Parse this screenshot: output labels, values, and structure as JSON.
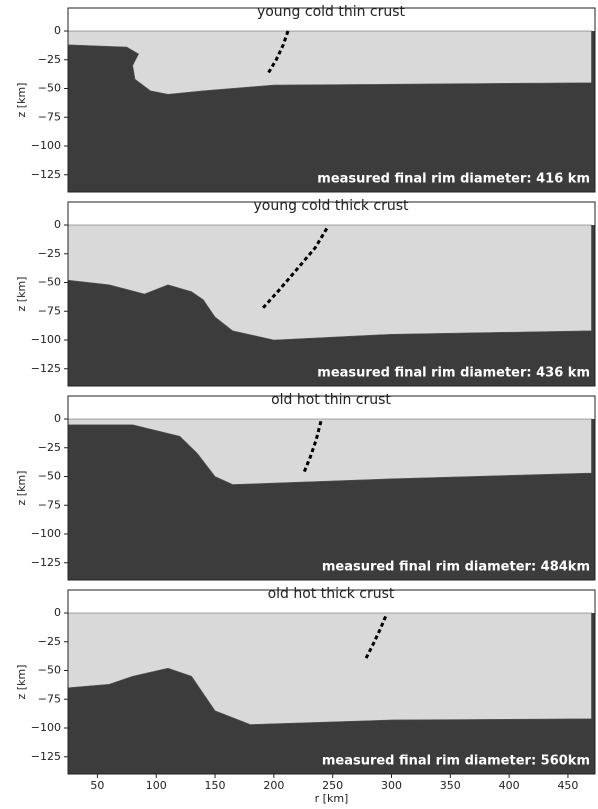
{
  "chart_data": [
    {
      "type": "area",
      "title": "young cold thin crust",
      "annotation": "measured final rim diameter: 416 km",
      "ylabel": "z [km]",
      "background": "#3c3c3c",
      "color": "#d9d9d9",
      "xlim": [
        25,
        473
      ],
      "ylim": [
        -140,
        20
      ],
      "yticks": [
        0,
        {
          "value": -25,
          "label": "−25"
        },
        {
          "value": -50,
          "label": "−50"
        },
        {
          "value": -75,
          "label": "−75"
        },
        {
          "value": -100,
          "label": "−100"
        },
        {
          "value": -125,
          "label": "−125"
        }
      ],
      "area": {
        "x": [
          25,
          470,
          470,
          200,
          140,
          110,
          95,
          82,
          80,
          85,
          75,
          25
        ],
        "y": [
          0,
          0,
          -45,
          -47,
          -52,
          -55,
          -52,
          -42,
          -30,
          -20,
          -14,
          -12
        ]
      },
      "rim": {
        "x": [
          212,
          208,
          202,
          195
        ],
        "y": [
          0,
          -12,
          -25,
          -37
        ]
      }
    },
    {
      "type": "area",
      "title": "young cold thick crust",
      "annotation": "measured final rim diameter: 436 km",
      "ylabel": "z [km]",
      "background": "#3c3c3c",
      "color": "#d9d9d9",
      "xlim": [
        25,
        473
      ],
      "ylim": [
        -140,
        20
      ],
      "yticks": [
        0,
        {
          "value": -25,
          "label": "−25"
        },
        {
          "value": -50,
          "label": "−50"
        },
        {
          "value": -75,
          "label": "−75"
        },
        {
          "value": -100,
          "label": "−100"
        },
        {
          "value": -125,
          "label": "−125"
        }
      ],
      "area": {
        "x": [
          25,
          470,
          470,
          300,
          200,
          165,
          150,
          140,
          130,
          110,
          90,
          60,
          25
        ],
        "y": [
          0,
          0,
          -92,
          -95,
          -100,
          -92,
          -80,
          -65,
          -58,
          -52,
          -60,
          -52,
          -48
        ]
      },
      "rim": {
        "x": [
          245,
          235,
          220,
          205,
          190
        ],
        "y": [
          -3,
          -20,
          -38,
          -56,
          -73
        ]
      }
    },
    {
      "type": "area",
      "title": "old hot thin crust",
      "annotation": "measured final rim diameter: 484km",
      "ylabel": "z [km]",
      "background": "#3c3c3c",
      "color": "#d9d9d9",
      "xlim": [
        25,
        473
      ],
      "ylim": [
        -140,
        20
      ],
      "yticks": [
        0,
        {
          "value": -25,
          "label": "−25"
        },
        {
          "value": -50,
          "label": "−50"
        },
        {
          "value": -75,
          "label": "−75"
        },
        {
          "value": -100,
          "label": "−100"
        },
        {
          "value": -125,
          "label": "−125"
        }
      ],
      "area": {
        "x": [
          25,
          470,
          470,
          300,
          165,
          150,
          135,
          120,
          80,
          25
        ],
        "y": [
          0,
          0,
          -47,
          -52,
          -57,
          -50,
          -30,
          -15,
          -5,
          -5
        ]
      },
      "rim": {
        "x": [
          240,
          236,
          231,
          225
        ],
        "y": [
          -2,
          -18,
          -33,
          -48
        ]
      }
    },
    {
      "type": "area",
      "title": "old hot thick crust",
      "annotation": "measured final rim diameter: 560km",
      "ylabel": "z [km]",
      "xlabel": "r [km]",
      "background": "#3c3c3c",
      "color": "#d9d9d9",
      "xlim": [
        25,
        473
      ],
      "ylim": [
        -140,
        20
      ],
      "xticks": [
        50,
        100,
        150,
        200,
        250,
        300,
        350,
        400,
        450
      ],
      "yticks": [
        0,
        {
          "value": -25,
          "label": "−25"
        },
        {
          "value": -50,
          "label": "−50"
        },
        {
          "value": -75,
          "label": "−75"
        },
        {
          "value": -100,
          "label": "−100"
        },
        {
          "value": -125,
          "label": "−125"
        }
      ],
      "area": {
        "x": [
          25,
          470,
          470,
          300,
          180,
          150,
          130,
          110,
          80,
          60,
          25
        ],
        "y": [
          0,
          0,
          -92,
          -93,
          -97,
          -85,
          -55,
          -48,
          -55,
          -62,
          -65
        ]
      },
      "rim": {
        "x": [
          295,
          290,
          284,
          278
        ],
        "y": [
          -3,
          -15,
          -28,
          -40
        ]
      }
    }
  ]
}
